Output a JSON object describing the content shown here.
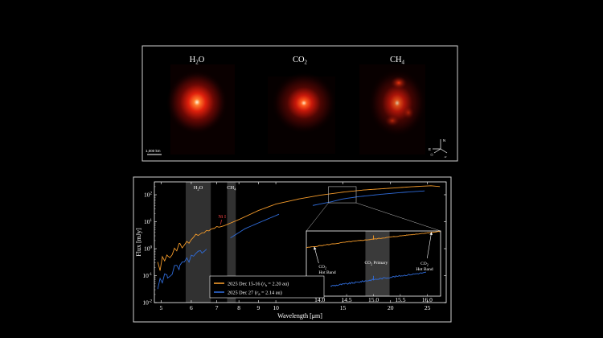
{
  "top_panel": {
    "molecule_labels": [
      {
        "name": "H",
        "sub": "2",
        "tail": "O"
      },
      {
        "name": "CO",
        "sub": "2",
        "tail": ""
      },
      {
        "name": "CH",
        "sub": "4",
        "tail": ""
      }
    ],
    "scale_label": "1,000 km",
    "compass": {
      "north": "N",
      "east": "E",
      "sun": "☉",
      "velocity": "-v"
    }
  },
  "chart_data": {
    "type": "line",
    "xlabel": "Wavelength [μm]",
    "ylabel": "Flux [mJy]",
    "xscale": "log",
    "yscale": "log",
    "xlim": [
      4.8,
      28
    ],
    "ylim": [
      0.01,
      300
    ],
    "x_ticks": [
      5,
      6,
      7,
      8,
      9,
      10,
      15,
      20,
      25
    ],
    "y_ticks": [
      {
        "value": 0.01,
        "base": "10",
        "exp": "-2"
      },
      {
        "value": 0.1,
        "base": "10",
        "exp": "-1"
      },
      {
        "value": 1,
        "base": "10",
        "exp": "0"
      },
      {
        "value": 10,
        "base": "10",
        "exp": "1"
      },
      {
        "value": 100,
        "base": "10",
        "exp": "2"
      }
    ],
    "bands": [
      {
        "label": "H",
        "sub": "2",
        "tail": "O",
        "x0": 5.8,
        "x1": 6.75
      },
      {
        "label": "CH",
        "sub": "4",
        "tail": "",
        "x0": 7.45,
        "x1": 7.85
      }
    ],
    "annotation": {
      "text": "Ni I",
      "x": 7.2,
      "y": 7.3,
      "color": "#ff4444"
    },
    "series": [
      {
        "name": "2025 Dec 15-16 (r_h = 2.20 au)",
        "legend_main": "2025 Dec 15-16 (",
        "legend_r": "r",
        "legend_h": "h",
        "legend_tail": " = 2.20 au)",
        "color": "#f39a2a",
        "points": [
          [
            4.9,
            0.2
          ],
          [
            5.2,
            0.55
          ],
          [
            5.6,
            1.2
          ],
          [
            6.0,
            2.2
          ],
          [
            6.4,
            4
          ],
          [
            6.9,
            5.6
          ],
          [
            7.3,
            7.0
          ],
          [
            8.0,
            12
          ],
          [
            9.0,
            26
          ],
          [
            10.0,
            45
          ],
          [
            11.5,
            70
          ],
          [
            13.0,
            95
          ],
          [
            15.0,
            125
          ],
          [
            17.0,
            150
          ],
          [
            20.0,
            175
          ],
          [
            23.0,
            200
          ],
          [
            25.5,
            215
          ],
          [
            27.0,
            200
          ]
        ]
      },
      {
        "name": "2025 Dec 27 (r_h = 2.14 au)",
        "legend_main": "2025 Dec 27 (",
        "legend_r": "r",
        "legend_h": "h",
        "legend_tail": " = 2.14 au)",
        "color": "#2f6bd8",
        "points": [
          [
            4.9,
            0.05
          ],
          [
            5.2,
            0.11
          ],
          [
            5.6,
            0.25
          ],
          [
            6.0,
            0.48
          ],
          [
            6.4,
            0.8
          ],
          [
            6.6,
            1.0
          ],
          [
            7.6,
            2.5
          ],
          [
            8.3,
            5.5
          ],
          [
            9.0,
            9
          ],
          [
            10.2,
            19
          ],
          [
            12.5,
            40
          ],
          [
            14.0,
            55
          ],
          [
            15.0,
            70
          ],
          [
            16.5,
            85
          ],
          [
            19.0,
            105
          ],
          [
            22.0,
            125
          ],
          [
            24.8,
            140
          ]
        ]
      }
    ],
    "inset": {
      "xlim": [
        13.75,
        16.25
      ],
      "ylim": [
        50,
        200
      ],
      "x_ticks": [
        "14.0",
        "14.5",
        "15.0",
        "15.5",
        "16.0"
      ],
      "x_tick_values": [
        14.0,
        14.5,
        15.0,
        15.5,
        16.0
      ],
      "band": {
        "x0": 14.85,
        "x1": 15.3
      },
      "labels": [
        {
          "line1_name": "CO",
          "line1_sub": "2",
          "line2": "Hot Band",
          "x": 13.95
        },
        {
          "line1_name": "CO",
          "line1_sub": "2",
          "line2": " Primary",
          "x": 15.05
        },
        {
          "line1_name": "CO",
          "line1_sub": "2",
          "line2": "Hot Band",
          "x": 15.95
        }
      ],
      "orange": [
        [
          13.75,
          140
        ],
        [
          14.5,
          158
        ],
        [
          15.0,
          168
        ],
        [
          15.5,
          180
        ],
        [
          16.0,
          192
        ],
        [
          16.25,
          198
        ]
      ],
      "blue": [
        [
          14.2,
          62
        ],
        [
          14.6,
          66
        ],
        [
          15.0,
          71
        ],
        [
          15.5,
          77
        ],
        [
          16.0,
          83
        ]
      ]
    }
  }
}
